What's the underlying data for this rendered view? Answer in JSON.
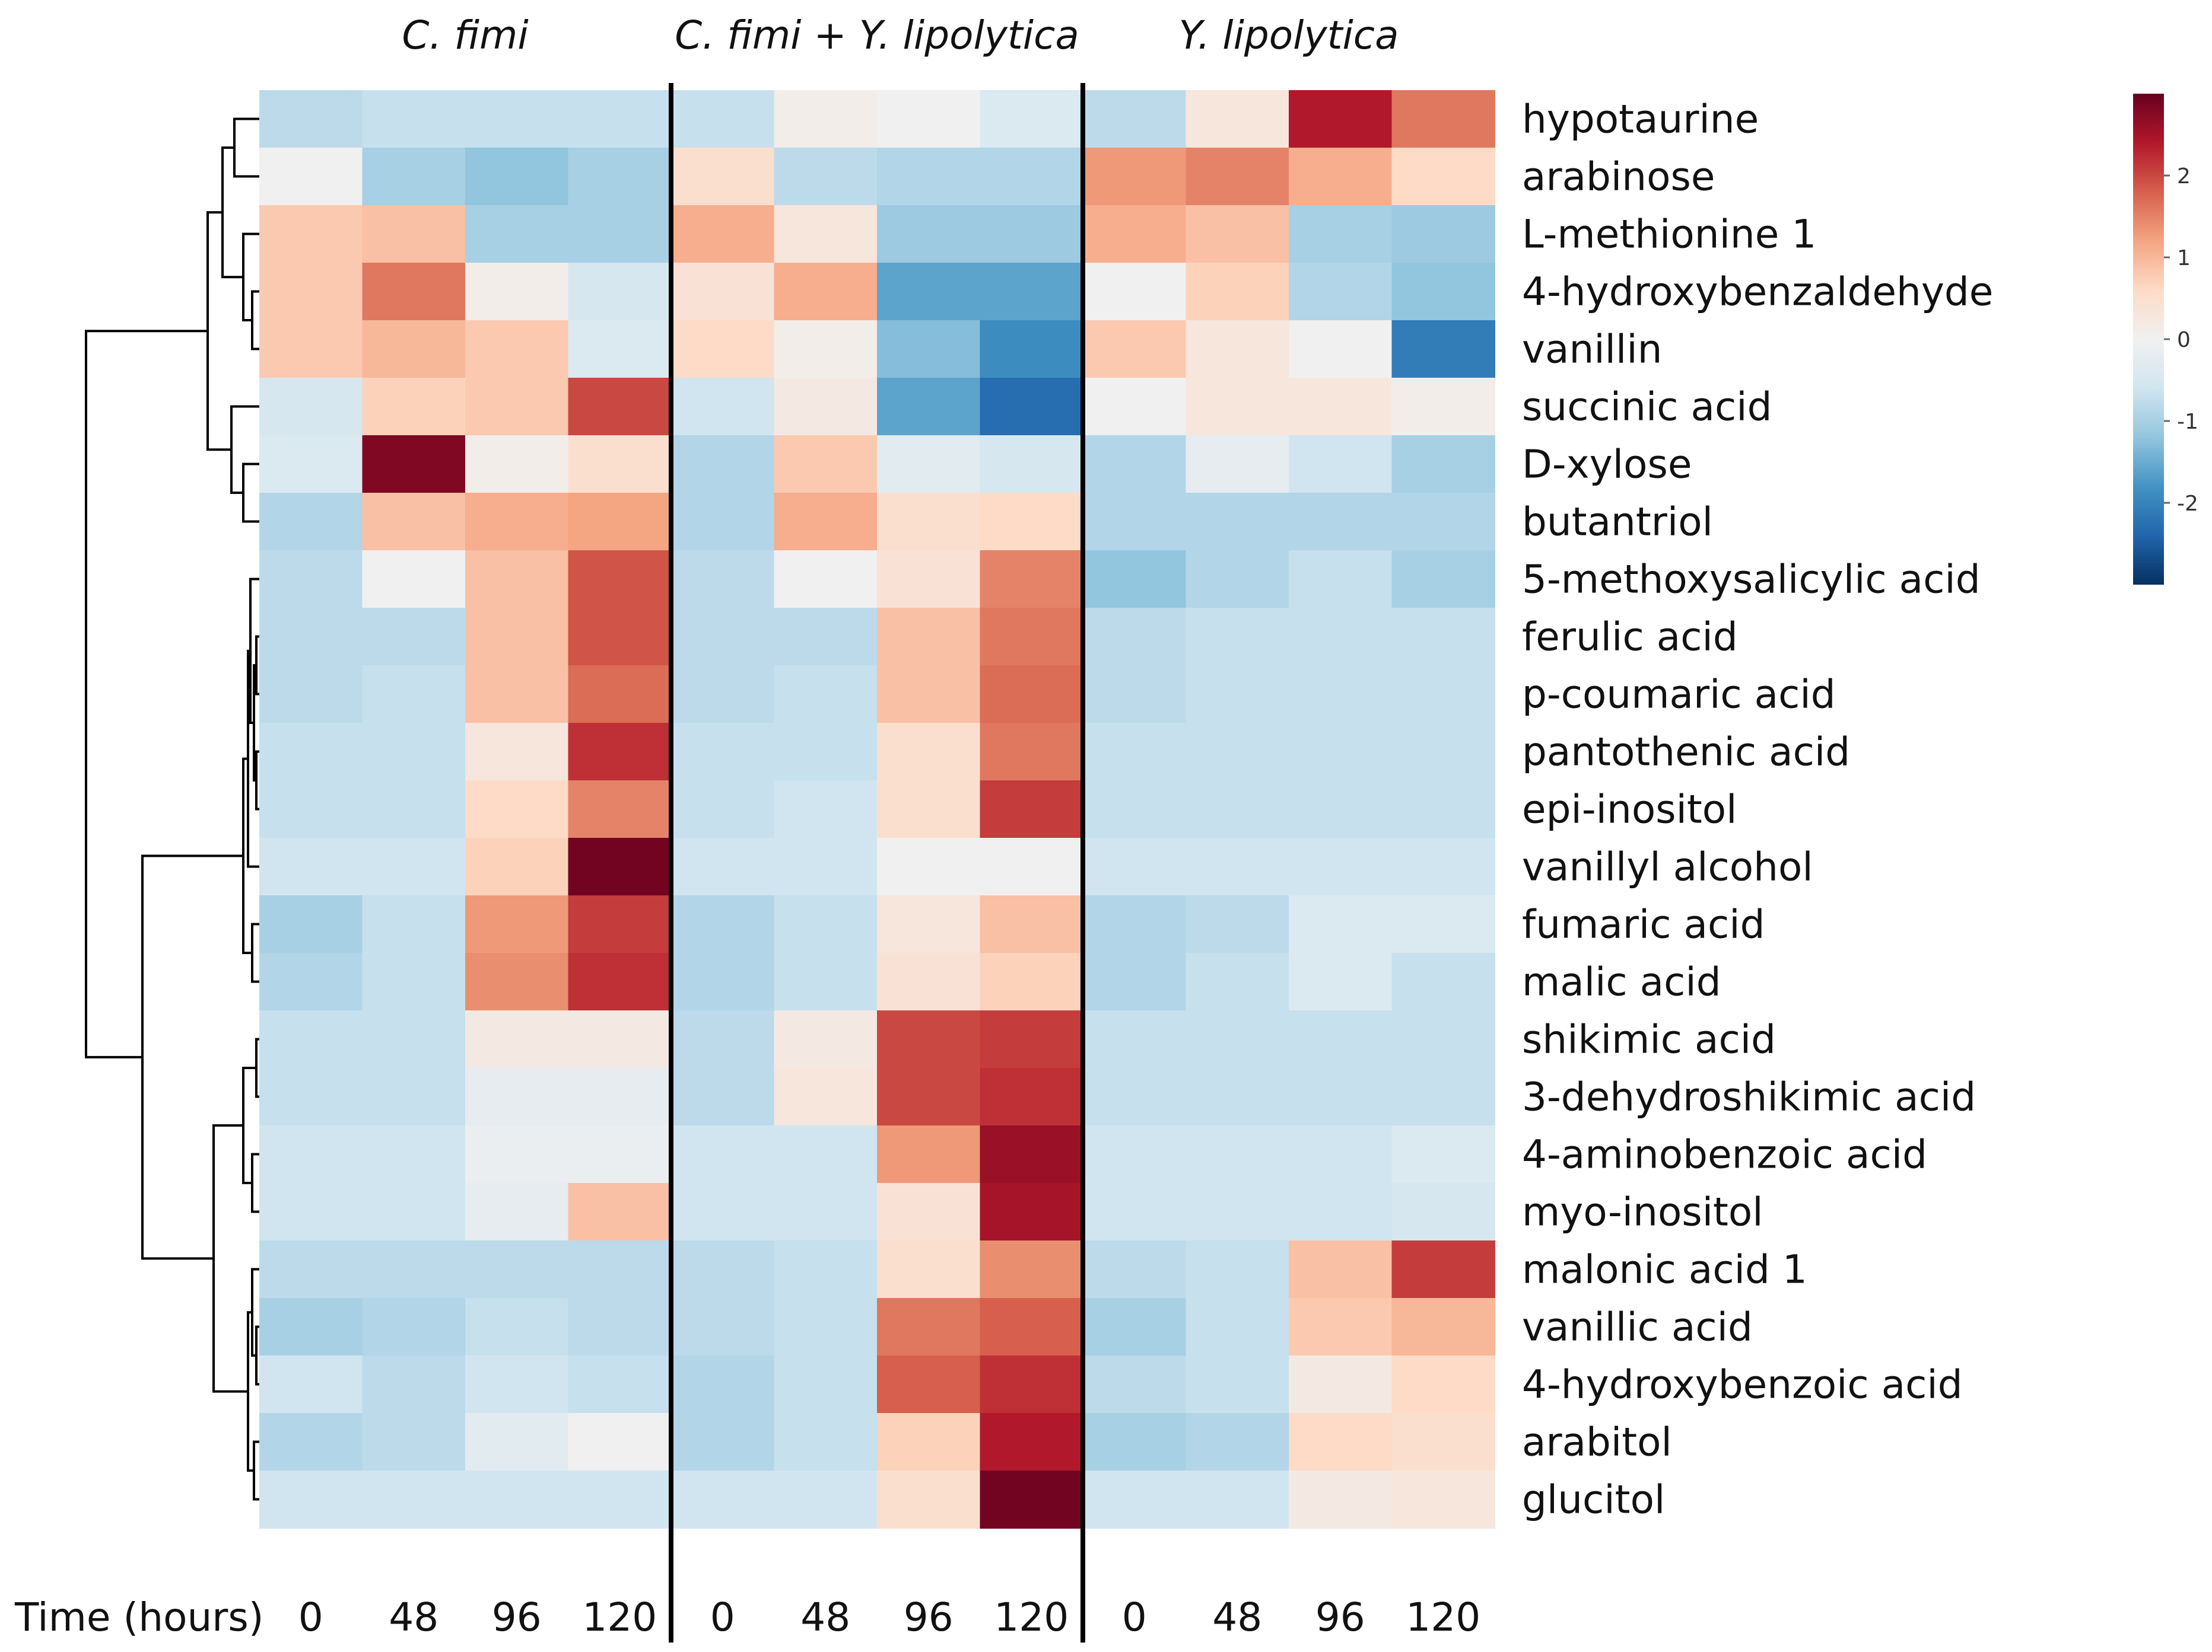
{
  "chart_data": {
    "type": "heatmap",
    "title": "",
    "xlabel": "Time (hours)",
    "groups": [
      {
        "name": "C. fimi",
        "times": [
          "0",
          "48",
          "96",
          "120"
        ]
      },
      {
        "name": "C. fimi + Y. lipolytica",
        "times": [
          "0",
          "48",
          "96",
          "120"
        ]
      },
      {
        "name": "Y. lipolytica",
        "times": [
          "0",
          "48",
          "96",
          "120"
        ]
      }
    ],
    "rows": [
      "hypotaurine",
      "arabinose",
      "L-methionine 1",
      "4-hydroxybenzaldehyde",
      "vanillin",
      "succinic acid",
      "D-xylose",
      "butantriol",
      "5-methoxysalicylic acid",
      "ferulic acid",
      "p-coumaric acid",
      "pantothenic acid",
      "epi-inositol",
      "vanillyl alcohol",
      "fumaric acid",
      "malic acid",
      "shikimic acid",
      "3-dehydroshikimic acid",
      "4-aminobenzoic acid",
      "myo-inositol",
      "malonic acid 1",
      "vanillic acid",
      "4-hydroxybenzoic acid",
      "arabitol",
      "glucitol"
    ],
    "values": [
      [
        -0.8,
        -0.7,
        -0.7,
        -0.7,
        -0.7,
        0.1,
        0.0,
        -0.4,
        -0.8,
        0.3,
        2.4,
        1.6
      ],
      [
        0.0,
        -1.0,
        -1.2,
        -1.0,
        0.5,
        -0.8,
        -0.9,
        -0.9,
        1.3,
        1.5,
        1.1,
        0.6
      ],
      [
        0.8,
        0.9,
        -1.0,
        -1.0,
        1.1,
        0.3,
        -1.1,
        -1.1,
        1.1,
        0.9,
        -1.0,
        -1.1
      ],
      [
        0.8,
        1.6,
        0.1,
        -0.5,
        0.4,
        1.1,
        -1.6,
        -1.6,
        0.0,
        0.7,
        -0.9,
        -1.2
      ],
      [
        0.8,
        1.0,
        0.8,
        -0.4,
        0.6,
        0.1,
        -1.3,
        -1.9,
        0.8,
        0.3,
        0.0,
        -2.1
      ],
      [
        -0.5,
        0.7,
        0.8,
        2.0,
        -0.6,
        0.2,
        -1.6,
        -2.3,
        0.0,
        0.3,
        0.3,
        0.1
      ],
      [
        -0.4,
        2.8,
        0.1,
        0.5,
        -0.9,
        0.8,
        -0.3,
        -0.5,
        -0.9,
        -0.2,
        -0.6,
        -1.0
      ],
      [
        -0.9,
        0.9,
        1.1,
        1.2,
        -0.9,
        1.1,
        0.5,
        0.6,
        -0.9,
        -0.9,
        -0.9,
        -0.9
      ],
      [
        -0.8,
        0.0,
        0.9,
        1.9,
        -0.8,
        0.0,
        0.4,
        1.5,
        -1.2,
        -0.9,
        -0.7,
        -1.0
      ],
      [
        -0.8,
        -0.8,
        0.9,
        1.9,
        -0.8,
        -0.8,
        0.9,
        1.6,
        -0.8,
        -0.7,
        -0.7,
        -0.7
      ],
      [
        -0.8,
        -0.7,
        0.9,
        1.7,
        -0.8,
        -0.7,
        0.9,
        1.7,
        -0.8,
        -0.7,
        -0.7,
        -0.7
      ],
      [
        -0.7,
        -0.7,
        0.3,
        2.2,
        -0.7,
        -0.7,
        0.5,
        1.6,
        -0.7,
        -0.7,
        -0.7,
        -0.7
      ],
      [
        -0.7,
        -0.7,
        0.6,
        1.5,
        -0.7,
        -0.6,
        0.5,
        2.1,
        -0.7,
        -0.7,
        -0.7,
        -0.7
      ],
      [
        -0.6,
        -0.6,
        0.7,
        2.9,
        -0.6,
        -0.6,
        0.0,
        0.0,
        -0.6,
        -0.6,
        -0.6,
        -0.6
      ],
      [
        -1.0,
        -0.7,
        1.3,
        2.1,
        -0.9,
        -0.7,
        0.3,
        0.9,
        -0.9,
        -0.8,
        -0.4,
        -0.4
      ],
      [
        -0.9,
        -0.7,
        1.4,
        2.2,
        -0.9,
        -0.7,
        0.4,
        0.7,
        -0.9,
        -0.7,
        -0.4,
        -0.7
      ],
      [
        -0.7,
        -0.7,
        0.2,
        0.2,
        -0.8,
        0.2,
        2.0,
        2.1,
        -0.7,
        -0.7,
        -0.7,
        -0.7
      ],
      [
        -0.7,
        -0.7,
        -0.2,
        -0.2,
        -0.8,
        0.3,
        2.0,
        2.2,
        -0.7,
        -0.7,
        -0.7,
        -0.7
      ],
      [
        -0.6,
        -0.6,
        -0.1,
        -0.1,
        -0.6,
        -0.6,
        1.3,
        2.6,
        -0.6,
        -0.6,
        -0.6,
        -0.4
      ],
      [
        -0.6,
        -0.6,
        -0.2,
        0.9,
        -0.6,
        -0.6,
        0.4,
        2.5,
        -0.6,
        -0.6,
        -0.6,
        -0.5
      ],
      [
        -0.8,
        -0.8,
        -0.8,
        -0.8,
        -0.8,
        -0.7,
        0.5,
        1.4,
        -0.8,
        -0.7,
        0.9,
        2.1
      ],
      [
        -1.0,
        -0.9,
        -0.7,
        -0.8,
        -0.8,
        -0.7,
        1.6,
        1.8,
        -1.0,
        -0.7,
        0.8,
        1.0
      ],
      [
        -0.6,
        -0.8,
        -0.6,
        -0.7,
        -0.9,
        -0.7,
        1.8,
        2.2,
        -0.8,
        -0.7,
        0.2,
        0.6
      ],
      [
        -0.9,
        -0.8,
        -0.3,
        0.0,
        -0.9,
        -0.7,
        0.7,
        2.4,
        -1.0,
        -0.9,
        0.6,
        0.5
      ],
      [
        -0.6,
        -0.6,
        -0.6,
        -0.6,
        -0.6,
        -0.6,
        0.5,
        2.9,
        -0.6,
        -0.6,
        0.2,
        0.3
      ]
    ],
    "color_scale": {
      "min": -3,
      "max": 3,
      "ticks": [
        "2",
        "1",
        "0",
        "-1",
        "-2"
      ],
      "stops": [
        "#053061",
        "#2166ac",
        "#4393c3",
        "#92c5de",
        "#d1e5f0",
        "#f0f0f0",
        "#fddbc7",
        "#f4a582",
        "#d6604d",
        "#b2182b",
        "#67001f"
      ]
    },
    "dendrogram": "row clustering tree (hierarchical)"
  }
}
